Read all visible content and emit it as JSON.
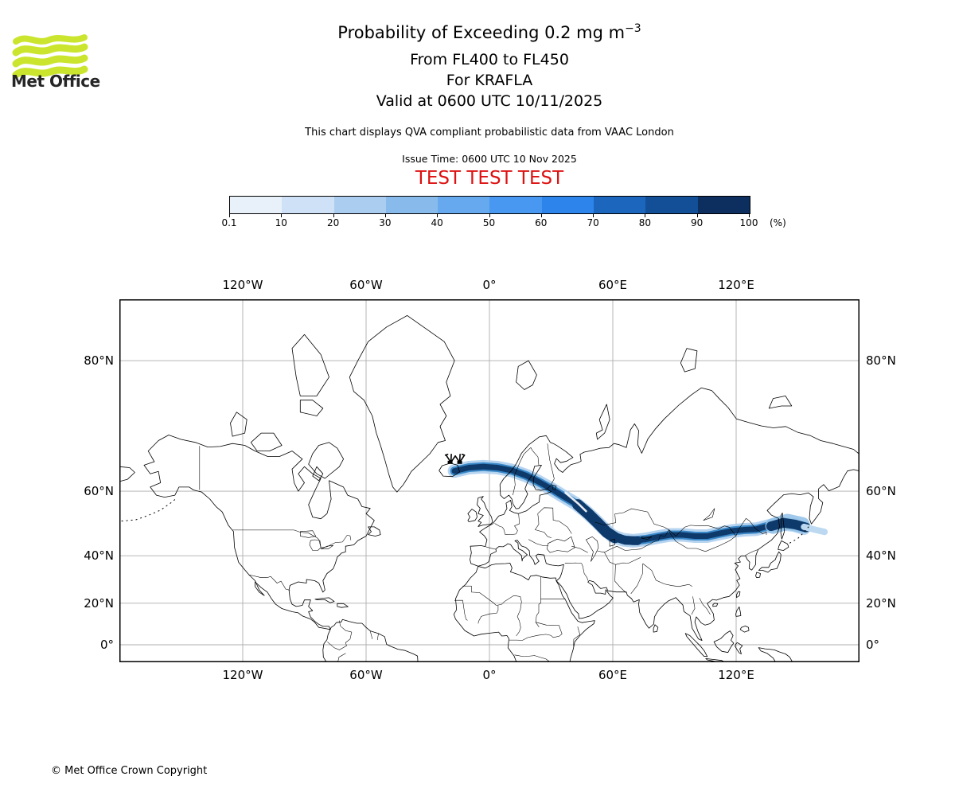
{
  "header": {
    "logo_text": "Met Office",
    "logo_wave_color": "#cbe52e",
    "title_main": "Probability of Exceeding 0.2 mg m",
    "title_exponent": "−3",
    "subtitle_fl": "From FL400 to FL450",
    "subtitle_volcano": "For KRAFLA",
    "subtitle_valid": "Valid at 0600 UTC 10/11/2025",
    "note": "This chart displays QVA compliant probabilistic data from VAAC London",
    "issue_time": "Issue Time: 0600 UTC 10 Nov 2025",
    "test_banner": "TEST TEST TEST",
    "test_color": "#dd1111"
  },
  "colorbar": {
    "tick_labels": [
      "0.1",
      "10",
      "20",
      "30",
      "40",
      "50",
      "60",
      "70",
      "80",
      "90",
      "100"
    ],
    "unit_label": "(%)",
    "segment_colors": [
      "#e8f1fa",
      "#cfe1f6",
      "#abcef0",
      "#88bbec",
      "#66a9ef",
      "#4897f1",
      "#2d85ec",
      "#1c67bd",
      "#124f97",
      "#0d2f5f"
    ]
  },
  "map": {
    "grid_color": "#adadad",
    "lon_ticks": [
      {
        "label": "120°W",
        "lon": -120
      },
      {
        "label": "60°W",
        "lon": -60
      },
      {
        "label": "0°",
        "lon": 0
      },
      {
        "label": "60°E",
        "lon": 60
      },
      {
        "label": "120°E",
        "lon": 120
      }
    ],
    "lat_ticks": [
      {
        "label": "80°N",
        "lat": 80
      },
      {
        "label": "60°N",
        "lat": 60
      },
      {
        "label": "40°N",
        "lat": 40
      },
      {
        "label": "20°N",
        "lat": 20
      },
      {
        "label": "0°",
        "lat": 0
      }
    ],
    "extent": {
      "lon_min": -180,
      "lon_max": 180,
      "lat_min": -8.6,
      "lat_max": 83.9
    }
  },
  "chart_data": {
    "type": "map",
    "description": "Probability of exceeding 0.2 mg/m3 volcanic ash concentration, FL400-FL450, shaded plume from Iceland across northern Eurasia to the Sea of Okhotsk",
    "volcano": {
      "name": "KRAFLA",
      "lon": -16.8,
      "lat": 65.73
    },
    "main_path": [
      [
        -17,
        64.6
      ],
      [
        -10,
        65.3
      ],
      [
        -3,
        65.5
      ],
      [
        4,
        65.3
      ],
      [
        11,
        64.7
      ],
      [
        18,
        63.6
      ],
      [
        24,
        62.2
      ],
      [
        30,
        60.6
      ],
      [
        36,
        58.7
      ],
      [
        42,
        56.8
      ],
      [
        47,
        54.6
      ],
      [
        52,
        51.8
      ],
      [
        56,
        49.2
      ],
      [
        60,
        47
      ],
      [
        65,
        45.8
      ],
      [
        70,
        45.4
      ],
      [
        76,
        45.9
      ],
      [
        82,
        46.7
      ],
      [
        88,
        47.4
      ],
      [
        94,
        47.4
      ],
      [
        100,
        47
      ],
      [
        106,
        47
      ],
      [
        112,
        47.9
      ],
      [
        118,
        48.7
      ],
      [
        124,
        49.1
      ],
      [
        130,
        49.3
      ],
      [
        136,
        50.3
      ],
      [
        142,
        51
      ],
      [
        148,
        50.6
      ],
      [
        153,
        49.6
      ]
    ],
    "plume_tracks": [
      {
        "use_main": true,
        "color": "#aecfee",
        "width": 17,
        "opacity": 0.9
      },
      {
        "use_main": true,
        "color": "#3a88c8",
        "width": 11,
        "opacity": 1
      },
      {
        "use_main": true,
        "color": "#0e3a6b",
        "width": 7,
        "opacity": 1
      },
      {
        "points": [
          [
            43,
            56.5
          ],
          [
            48,
            54
          ],
          [
            53,
            51
          ],
          [
            57,
            48.3
          ],
          [
            61,
            46.5
          ]
        ],
        "color": "#0e3a6b",
        "width": 14,
        "opacity": 1
      },
      {
        "points": [
          [
            60,
            47
          ],
          [
            66,
            45.6
          ],
          [
            72,
            45.4
          ]
        ],
        "color": "#0e3a6b",
        "width": 11,
        "opacity": 1
      },
      {
        "points": [
          [
            138,
            50.3
          ],
          [
            145,
            51.6
          ],
          [
            152,
            50.6
          ]
        ],
        "color": "#8fc0e8",
        "width": 20,
        "opacity": 0.85
      },
      {
        "points": [
          [
            137,
            50.2
          ],
          [
            143,
            51.3
          ],
          [
            149,
            50.7
          ],
          [
            154,
            49.8
          ]
        ],
        "color": "#0e3a6b",
        "width": 12,
        "opacity": 1
      },
      {
        "points": [
          [
            153,
            50
          ],
          [
            159,
            49
          ],
          [
            163,
            48.4
          ]
        ],
        "color": "#bcd9f1",
        "width": 8,
        "opacity": 1
      },
      {
        "points": [
          [
            37,
            59.6
          ],
          [
            43,
            56.9
          ],
          [
            47,
            54.7
          ]
        ],
        "color": "#ffffff",
        "width": 2.6,
        "opacity": 0.9
      }
    ]
  },
  "footer": {
    "copyright": "© Met Office Crown Copyright"
  }
}
